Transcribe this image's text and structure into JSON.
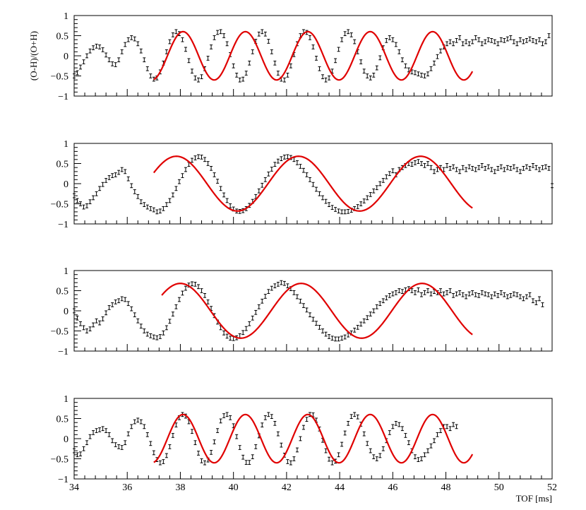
{
  "chart_data": {
    "type": "scatter",
    "shared_x": {
      "label": "TOF [ms]",
      "range": [
        34,
        52
      ],
      "tick_labels": [
        "34",
        "36",
        "38",
        "40",
        "42",
        "44",
        "46",
        "48",
        "50",
        "52"
      ]
    },
    "y_tick_labels": [
      "−1",
      "−0.5",
      "0",
      "0.5",
      "1"
    ],
    "panels": [
      {
        "ylabel": "(O-H)/(O+H)",
        "ylim": [
          -1,
          1
        ],
        "data": {
          "x_start": 34.0,
          "x_step": 0.12,
          "y": [
            -0.5,
            -0.42,
            -0.28,
            -0.15,
            0.0,
            0.12,
            0.2,
            0.24,
            0.22,
            0.15,
            0.02,
            -0.1,
            -0.2,
            -0.22,
            -0.1,
            0.1,
            0.28,
            0.4,
            0.45,
            0.42,
            0.3,
            0.12,
            -0.1,
            -0.32,
            -0.5,
            -0.58,
            -0.55,
            -0.4,
            -0.18,
            0.1,
            0.35,
            0.52,
            0.6,
            0.55,
            0.4,
            0.16,
            -0.12,
            -0.38,
            -0.55,
            -0.6,
            -0.52,
            -0.32,
            -0.06,
            0.22,
            0.45,
            0.58,
            0.6,
            0.5,
            0.3,
            0.03,
            -0.25,
            -0.48,
            -0.6,
            -0.58,
            -0.43,
            -0.18,
            0.1,
            0.36,
            0.54,
            0.6,
            0.54,
            0.36,
            0.1,
            -0.18,
            -0.43,
            -0.58,
            -0.6,
            -0.48,
            -0.25,
            0.03,
            0.3,
            0.5,
            0.6,
            0.58,
            0.45,
            0.22,
            -0.06,
            -0.32,
            -0.52,
            -0.6,
            -0.55,
            -0.38,
            -0.12,
            0.16,
            0.4,
            0.55,
            0.6,
            0.52,
            0.35,
            0.1,
            -0.15,
            -0.38,
            -0.5,
            -0.55,
            -0.48,
            -0.3,
            -0.05,
            0.2,
            0.38,
            0.45,
            0.4,
            0.28,
            0.1,
            -0.1,
            -0.25,
            -0.35,
            -0.4,
            -0.42,
            -0.45,
            -0.48,
            -0.5,
            -0.45,
            -0.32,
            -0.18,
            -0.02,
            0.12,
            0.22,
            0.3,
            0.35,
            0.3,
            0.38,
            0.45,
            0.3,
            0.35,
            0.3,
            0.35,
            0.45,
            0.4,
            0.3,
            0.35,
            0.4,
            0.38,
            0.35,
            0.3,
            0.4,
            0.38,
            0.42,
            0.45,
            0.35,
            0.3,
            0.4,
            0.35,
            0.38,
            0.42,
            0.38,
            0.35,
            0.4,
            0.3,
            0.35,
            0.5
          ]
        },
        "fit": {
          "x_range": [
            37.0,
            49.0
          ],
          "amplitude": 0.6,
          "period": 2.35,
          "phase_shift": 1.75,
          "offset": 0.0
        }
      },
      {
        "ylim": [
          -1,
          1
        ],
        "data": {
          "x_start": 34.0,
          "x_step": 0.12,
          "y": [
            -0.3,
            -0.42,
            -0.5,
            -0.58,
            -0.55,
            -0.45,
            -0.35,
            -0.25,
            -0.12,
            -0.02,
            0.08,
            0.15,
            0.2,
            0.22,
            0.28,
            0.35,
            0.3,
            0.12,
            -0.05,
            -0.2,
            -0.32,
            -0.45,
            -0.52,
            -0.58,
            -0.62,
            -0.65,
            -0.7,
            -0.68,
            -0.62,
            -0.52,
            -0.42,
            -0.28,
            -0.12,
            0.05,
            0.2,
            0.35,
            0.48,
            0.58,
            0.64,
            0.67,
            0.66,
            0.6,
            0.5,
            0.38,
            0.22,
            0.06,
            -0.12,
            -0.28,
            -0.42,
            -0.55,
            -0.63,
            -0.68,
            -0.69,
            -0.67,
            -0.62,
            -0.54,
            -0.44,
            -0.32,
            -0.18,
            -0.04,
            0.1,
            0.24,
            0.36,
            0.48,
            0.56,
            0.62,
            0.66,
            0.67,
            0.65,
            0.6,
            0.52,
            0.43,
            0.33,
            0.22,
            0.1,
            -0.02,
            -0.14,
            -0.25,
            -0.35,
            -0.44,
            -0.52,
            -0.59,
            -0.64,
            -0.68,
            -0.7,
            -0.7,
            -0.69,
            -0.66,
            -0.62,
            -0.57,
            -0.5,
            -0.43,
            -0.35,
            -0.27,
            -0.18,
            -0.1,
            0.0,
            0.08,
            0.17,
            0.25,
            0.32,
            0.22,
            0.35,
            0.4,
            0.45,
            0.5,
            0.48,
            0.52,
            0.55,
            0.5,
            0.45,
            0.5,
            0.4,
            0.3,
            0.35,
            0.4,
            0.35,
            0.45,
            0.38,
            0.42,
            0.35,
            0.3,
            0.4,
            0.35,
            0.42,
            0.38,
            0.35,
            0.4,
            0.45,
            0.38,
            0.42,
            0.35,
            0.3,
            0.38,
            0.42,
            0.35,
            0.4,
            0.38,
            0.42,
            0.35,
            0.3,
            0.38,
            0.42,
            0.38,
            0.45,
            0.4,
            0.35,
            0.4,
            0.42,
            0.38,
            -0.05
          ]
        },
        "fit": {
          "x_range": [
            37.0,
            49.0
          ],
          "amplitude": 0.68,
          "period": 4.6,
          "phase_shift": 3.85,
          "offset": 0.0
        }
      },
      {
        "ylim": [
          -1,
          1
        ],
        "data": {
          "x_start": 34.0,
          "x_step": 0.12,
          "y": [
            0.0,
            -0.18,
            -0.32,
            -0.42,
            -0.5,
            -0.45,
            -0.35,
            -0.25,
            -0.3,
            -0.2,
            -0.05,
            0.08,
            0.15,
            0.22,
            0.25,
            0.3,
            0.28,
            0.18,
            0.05,
            -0.1,
            -0.25,
            -0.38,
            -0.5,
            -0.58,
            -0.62,
            -0.65,
            -0.67,
            -0.64,
            -0.55,
            -0.42,
            -0.26,
            -0.08,
            0.1,
            0.28,
            0.44,
            0.56,
            0.64,
            0.67,
            0.66,
            0.6,
            0.5,
            0.38,
            0.22,
            0.06,
            -0.12,
            -0.28,
            -0.42,
            -0.55,
            -0.63,
            -0.68,
            -0.69,
            -0.67,
            -0.62,
            -0.54,
            -0.44,
            -0.32,
            -0.18,
            -0.04,
            0.1,
            0.24,
            0.36,
            0.48,
            0.56,
            0.62,
            0.66,
            0.7,
            0.68,
            0.62,
            0.55,
            0.45,
            0.35,
            0.24,
            0.13,
            0.02,
            -0.1,
            -0.21,
            -0.31,
            -0.41,
            -0.5,
            -0.58,
            -0.64,
            -0.68,
            -0.7,
            -0.7,
            -0.68,
            -0.65,
            -0.6,
            -0.55,
            -0.48,
            -0.41,
            -0.33,
            -0.25,
            -0.17,
            -0.08,
            0.0,
            0.1,
            0.18,
            0.25,
            0.32,
            0.38,
            0.42,
            0.45,
            0.5,
            0.48,
            0.52,
            0.55,
            0.5,
            0.45,
            0.52,
            0.4,
            0.45,
            0.5,
            0.42,
            0.48,
            0.45,
            0.5,
            0.42,
            0.45,
            0.5,
            0.38,
            0.42,
            0.45,
            0.4,
            0.35,
            0.42,
            0.45,
            0.4,
            0.38,
            0.45,
            0.42,
            0.4,
            0.35,
            0.42,
            0.38,
            0.45,
            0.4,
            0.35,
            0.38,
            0.42,
            0.4,
            0.35,
            0.3,
            0.35,
            0.4,
            0.25,
            0.2,
            0.3,
            0.15
          ]
        },
        "fit": {
          "x_range": [
            37.3,
            49.0
          ],
          "amplitude": 0.68,
          "period": 4.55,
          "phase_shift": 4.0,
          "offset": 0.0
        }
      },
      {
        "ylim": [
          -1,
          1
        ],
        "data": {
          "x_start": 34.0,
          "x_step": 0.12,
          "y": [
            -0.3,
            -0.4,
            -0.38,
            -0.25,
            -0.1,
            0.05,
            0.15,
            0.2,
            0.22,
            0.25,
            0.2,
            0.1,
            -0.05,
            -0.15,
            -0.2,
            -0.22,
            -0.1,
            0.12,
            0.3,
            0.42,
            0.46,
            0.42,
            0.3,
            0.1,
            -0.12,
            -0.35,
            -0.52,
            -0.6,
            -0.57,
            -0.42,
            -0.2,
            0.08,
            0.34,
            0.52,
            0.6,
            0.56,
            0.42,
            0.18,
            -0.1,
            -0.36,
            -0.55,
            -0.6,
            -0.53,
            -0.34,
            -0.08,
            0.2,
            0.44,
            0.57,
            0.6,
            0.52,
            0.32,
            0.05,
            -0.22,
            -0.46,
            -0.59,
            -0.59,
            -0.45,
            -0.2,
            0.07,
            0.34,
            0.52,
            0.6,
            0.55,
            0.38,
            0.12,
            -0.16,
            -0.41,
            -0.57,
            -0.6,
            -0.5,
            -0.28,
            0.0,
            0.28,
            0.48,
            0.6,
            0.59,
            0.46,
            0.24,
            -0.04,
            -0.3,
            -0.51,
            -0.6,
            -0.56,
            -0.4,
            -0.14,
            0.14,
            0.38,
            0.55,
            0.6,
            0.54,
            0.36,
            0.12,
            -0.12,
            -0.3,
            -0.45,
            -0.5,
            -0.42,
            -0.25,
            -0.05,
            0.15,
            0.3,
            0.38,
            0.35,
            0.25,
            0.08,
            -0.1,
            -0.3,
            -0.45,
            -0.52,
            -0.5,
            -0.4,
            -0.3,
            -0.18,
            -0.05,
            0.1,
            0.2,
            0.3,
            0.3,
            0.25,
            0.35,
            0.3
          ]
        },
        "fit": {
          "x_range": [
            37.0,
            49.0
          ],
          "amplitude": 0.6,
          "period": 2.35,
          "phase_shift": 1.75,
          "offset": 0.0
        }
      }
    ]
  }
}
